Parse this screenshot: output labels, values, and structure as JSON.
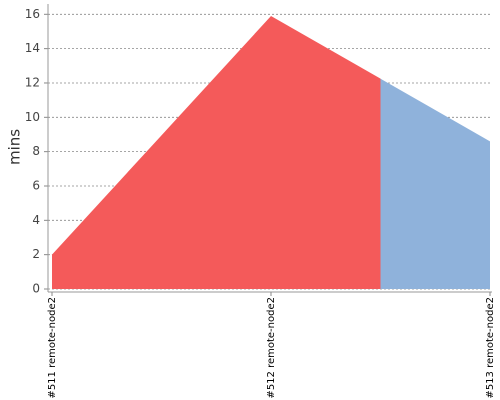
{
  "chart_data": {
    "type": "area",
    "y_label": "mins",
    "categories": [
      "#511 remote-node2",
      "#512 remote-node2",
      "#513 remote-node2"
    ],
    "values": [
      2,
      15.9,
      8.6
    ],
    "point_colors": [
      "#f45a5a",
      "#f45a5a",
      "#8fb2db"
    ],
    "ylim": [
      0,
      16.6
    ],
    "yticks": [
      0,
      2,
      4,
      6,
      8,
      10,
      12,
      14,
      16
    ],
    "grid": true
  }
}
